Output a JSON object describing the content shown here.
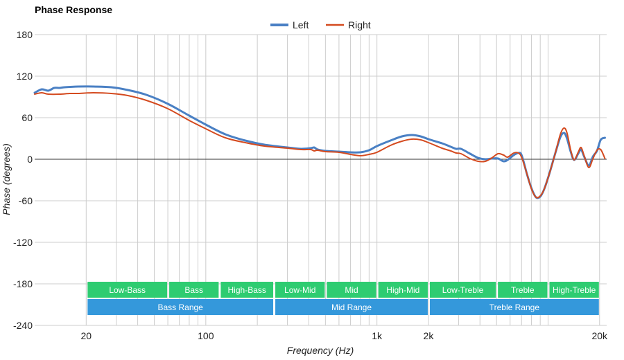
{
  "chart_data": {
    "type": "line",
    "title": "Phase Response",
    "xlabel": "Frequency (Hz)",
    "ylabel": "Phase (degrees)",
    "x_scale": "log",
    "xlim": [
      10,
      22000
    ],
    "ylim": [
      -240,
      180
    ],
    "y_ticks": [
      180,
      120,
      60,
      0,
      -60,
      -120,
      -180,
      -240
    ],
    "x_ticks": [
      {
        "value": 20,
        "label": "20"
      },
      {
        "value": 100,
        "label": "100"
      },
      {
        "value": 1000,
        "label": "1k"
      },
      {
        "value": 2000,
        "label": "2k"
      },
      {
        "value": 20000,
        "label": "20k"
      }
    ],
    "x_gridlines": [
      20,
      30,
      40,
      50,
      60,
      70,
      80,
      90,
      100,
      200,
      300,
      400,
      500,
      600,
      700,
      800,
      900,
      1000,
      2000,
      3000,
      4000,
      5000,
      6000,
      7000,
      8000,
      9000,
      10000,
      20000
    ],
    "grid": true,
    "legend_position": "top-center",
    "series": [
      {
        "name": "Left",
        "color": "#4a80c4",
        "points": [
          [
            10,
            96
          ],
          [
            11,
            101
          ],
          [
            12,
            99
          ],
          [
            13,
            103
          ],
          [
            14,
            103
          ],
          [
            15,
            104
          ],
          [
            18,
            105
          ],
          [
            22,
            105
          ],
          [
            28,
            104
          ],
          [
            35,
            100
          ],
          [
            45,
            93
          ],
          [
            60,
            80
          ],
          [
            80,
            63
          ],
          [
            100,
            50
          ],
          [
            130,
            36
          ],
          [
            170,
            27
          ],
          [
            220,
            21
          ],
          [
            300,
            17
          ],
          [
            360,
            15
          ],
          [
            410,
            16
          ],
          [
            430,
            17
          ],
          [
            450,
            14
          ],
          [
            500,
            12
          ],
          [
            600,
            11
          ],
          [
            700,
            10
          ],
          [
            800,
            10
          ],
          [
            900,
            13
          ],
          [
            1000,
            19
          ],
          [
            1200,
            27
          ],
          [
            1400,
            33
          ],
          [
            1600,
            35
          ],
          [
            1800,
            33
          ],
          [
            2000,
            29
          ],
          [
            2400,
            23
          ],
          [
            2700,
            18
          ],
          [
            2900,
            15
          ],
          [
            3100,
            15
          ],
          [
            3500,
            8
          ],
          [
            3900,
            2
          ],
          [
            4300,
            0
          ],
          [
            4700,
            1
          ],
          [
            5100,
            1
          ],
          [
            5500,
            -3
          ],
          [
            5800,
            -1
          ],
          [
            6300,
            6
          ],
          [
            6700,
            9
          ],
          [
            7000,
            6
          ],
          [
            7500,
            -20
          ],
          [
            8000,
            -42
          ],
          [
            8500,
            -55
          ],
          [
            9000,
            -54
          ],
          [
            9500,
            -43
          ],
          [
            10200,
            -20
          ],
          [
            11000,
            8
          ],
          [
            11800,
            32
          ],
          [
            12400,
            38
          ],
          [
            12900,
            30
          ],
          [
            13600,
            10
          ],
          [
            14200,
            -1
          ],
          [
            15000,
            8
          ],
          [
            15600,
            14
          ],
          [
            16300,
            3
          ],
          [
            17300,
            -9
          ],
          [
            18300,
            4
          ],
          [
            19300,
            12
          ],
          [
            20300,
            28
          ],
          [
            21500,
            31
          ]
        ]
      },
      {
        "name": "Right",
        "color": "#d44a1f",
        "points": [
          [
            10,
            94
          ],
          [
            11,
            96
          ],
          [
            12,
            94
          ],
          [
            14,
            94
          ],
          [
            16,
            95
          ],
          [
            18,
            95
          ],
          [
            22,
            96
          ],
          [
            28,
            95
          ],
          [
            35,
            92
          ],
          [
            45,
            85
          ],
          [
            60,
            73
          ],
          [
            80,
            56
          ],
          [
            100,
            44
          ],
          [
            130,
            31
          ],
          [
            170,
            24
          ],
          [
            220,
            19
          ],
          [
            300,
            16
          ],
          [
            360,
            14
          ],
          [
            410,
            14
          ],
          [
            430,
            12
          ],
          [
            450,
            13
          ],
          [
            500,
            11
          ],
          [
            600,
            10
          ],
          [
            700,
            7
          ],
          [
            800,
            5
          ],
          [
            900,
            7
          ],
          [
            1000,
            10
          ],
          [
            1200,
            20
          ],
          [
            1400,
            26
          ],
          [
            1600,
            29
          ],
          [
            1800,
            28
          ],
          [
            2000,
            24
          ],
          [
            2400,
            16
          ],
          [
            2700,
            12
          ],
          [
            2900,
            9
          ],
          [
            3100,
            8
          ],
          [
            3500,
            1
          ],
          [
            3900,
            -3
          ],
          [
            4300,
            -3
          ],
          [
            4700,
            2
          ],
          [
            5100,
            8
          ],
          [
            5500,
            6
          ],
          [
            5800,
            3
          ],
          [
            6300,
            9
          ],
          [
            6700,
            9
          ],
          [
            7000,
            3
          ],
          [
            7500,
            -20
          ],
          [
            8000,
            -43
          ],
          [
            8500,
            -55
          ],
          [
            9000,
            -53
          ],
          [
            9500,
            -43
          ],
          [
            10200,
            -20
          ],
          [
            11000,
            8
          ],
          [
            11800,
            36
          ],
          [
            12400,
            45
          ],
          [
            12900,
            38
          ],
          [
            13600,
            12
          ],
          [
            14200,
            -1
          ],
          [
            15000,
            10
          ],
          [
            15600,
            17
          ],
          [
            16300,
            4
          ],
          [
            17300,
            -12
          ],
          [
            18300,
            1
          ],
          [
            19300,
            13
          ],
          [
            20300,
            14
          ],
          [
            21500,
            1
          ]
        ]
      }
    ],
    "bands": [
      {
        "label": "Low-Bass",
        "from": 20,
        "to": 60,
        "color": "#2ecc71",
        "row": 1
      },
      {
        "label": "Bass",
        "from": 60,
        "to": 120,
        "color": "#2ecc71",
        "row": 1
      },
      {
        "label": "High-Bass",
        "from": 120,
        "to": 250,
        "color": "#2ecc71",
        "row": 1
      },
      {
        "label": "Low-Mid",
        "from": 250,
        "to": 500,
        "color": "#2ecc71",
        "row": 1
      },
      {
        "label": "Mid",
        "from": 500,
        "to": 1000,
        "color": "#2ecc71",
        "row": 1
      },
      {
        "label": "High-Mid",
        "from": 1000,
        "to": 2000,
        "color": "#2ecc71",
        "row": 1
      },
      {
        "label": "Low-Treble",
        "from": 2000,
        "to": 5000,
        "color": "#2ecc71",
        "row": 1
      },
      {
        "label": "Treble",
        "from": 5000,
        "to": 10000,
        "color": "#2ecc71",
        "row": 1
      },
      {
        "label": "High-Treble",
        "from": 10000,
        "to": 20000,
        "color": "#2ecc71",
        "row": 1
      },
      {
        "label": "Bass Range",
        "from": 20,
        "to": 250,
        "color": "#3498db",
        "row": 2
      },
      {
        "label": "Mid Range",
        "from": 250,
        "to": 2000,
        "color": "#3498db",
        "row": 2
      },
      {
        "label": "Treble Range",
        "from": 2000,
        "to": 20000,
        "color": "#3498db",
        "row": 2
      }
    ]
  }
}
